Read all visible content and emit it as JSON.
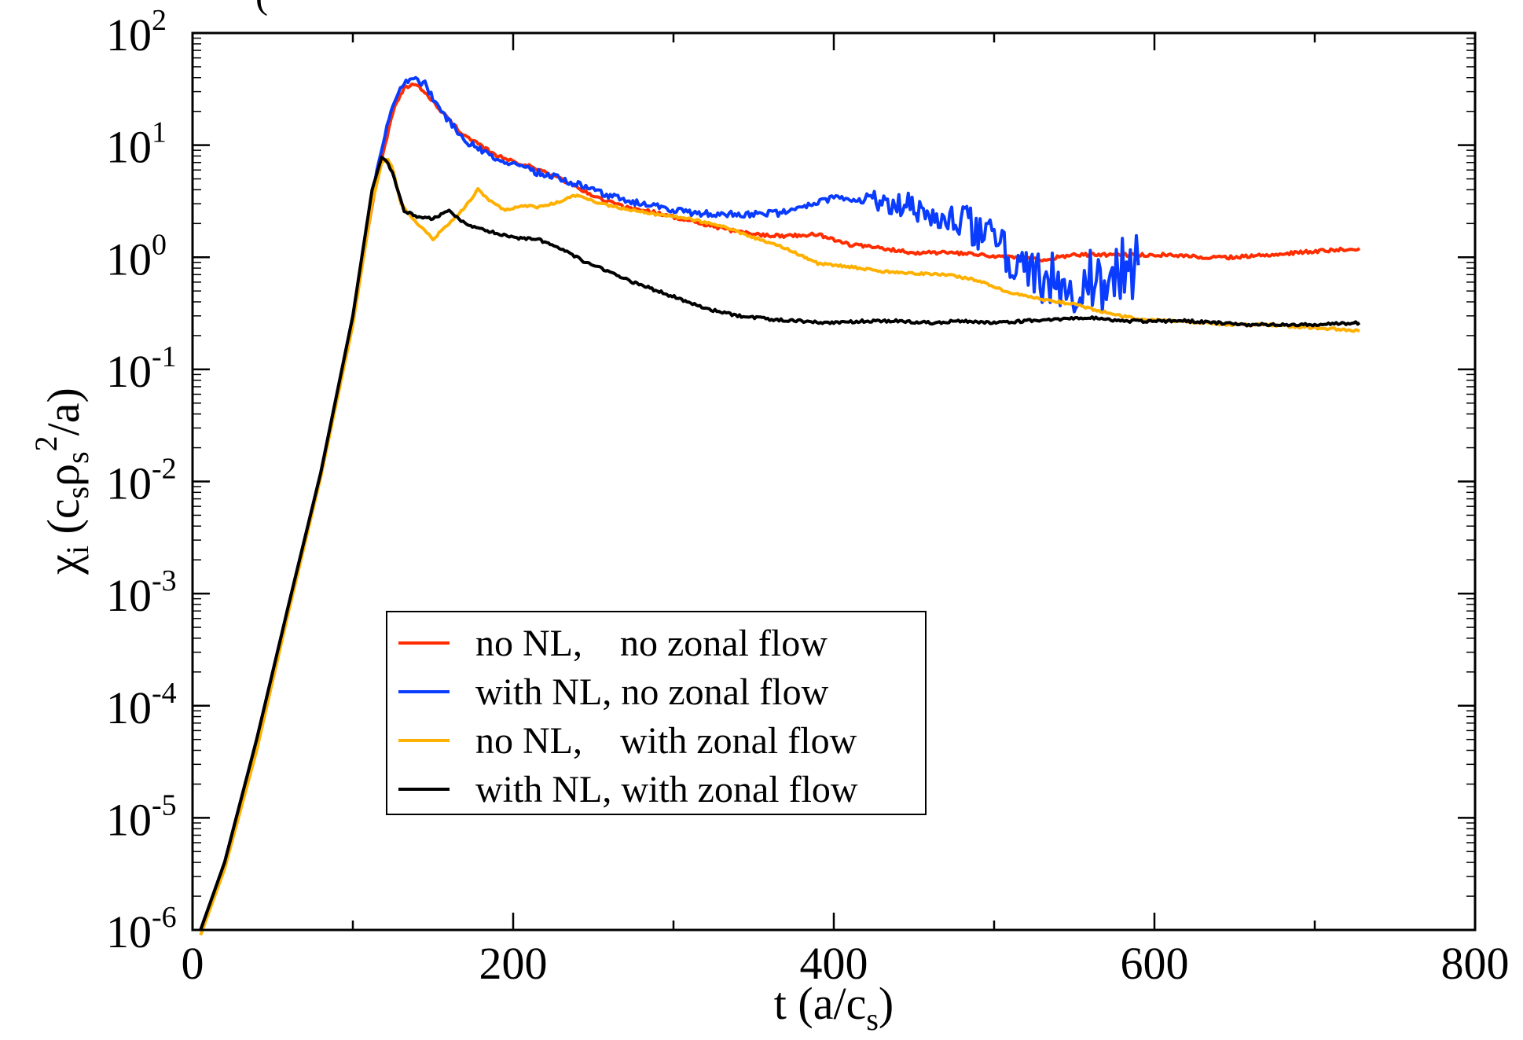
{
  "chart_data": {
    "type": "line",
    "title": "(",
    "xlabel": "t (a/c_s)",
    "xlabel_main": "t (a/c",
    "xlabel_sub": "s",
    "xlabel_tail": ")",
    "ylabel": "χ_i (c_s ρ_s^2/a)",
    "ylabel_parts": {
      "chi": "χ",
      "i": "i",
      "open": " (c",
      "s1": "s",
      "rho": "ρ",
      "s2": "s",
      "sup": "2",
      "tail": "/a)"
    },
    "xlim": [
      0,
      800
    ],
    "ylim": [
      1e-06,
      100
    ],
    "yscale": "log",
    "x_ticks": [
      0,
      200,
      400,
      600,
      800
    ],
    "x_tick_labels": [
      "0",
      "200",
      "400",
      "600",
      "800"
    ],
    "y_ticks": [
      -6,
      -5,
      -4,
      -3,
      -2,
      -1,
      0,
      1,
      2
    ],
    "y_tick_base": "10",
    "y_tick_exponents": [
      "-6",
      "-5",
      "-4",
      "-3",
      "-2",
      "-1",
      "0",
      "1",
      "2"
    ],
    "legend_position": "lower-center",
    "series": [
      {
        "name": "no NL,    no zonal flow",
        "color": "#ff2d00",
        "noise": 0.015,
        "x": [
          5,
          20,
          40,
          60,
          80,
          100,
          115,
          125,
          132,
          138,
          145,
          155,
          170,
          190,
          210,
          230,
          250,
          270,
          290,
          310,
          330,
          350,
          370,
          390,
          410,
          430,
          450,
          470,
          490,
          510,
          530,
          550,
          570,
          590,
          610,
          630,
          650,
          670,
          690,
          710,
          728
        ],
        "y": [
          1e-06,
          4e-06,
          5e-05,
          0.0008,
          0.012,
          0.3,
          5,
          20,
          32,
          35,
          30,
          20,
          12,
          8,
          6.5,
          5,
          3.5,
          2.8,
          2.5,
          2.1,
          1.8,
          1.6,
          1.55,
          1.6,
          1.3,
          1.2,
          1.1,
          1.1,
          1.05,
          1.0,
          0.95,
          1.05,
          1.05,
          1.05,
          1.05,
          1.0,
          1.0,
          1.05,
          1.1,
          1.15,
          1.2
        ]
      },
      {
        "name": "with NL, no zonal flow",
        "color": "#0a3cff",
        "noise": 0.03,
        "x": [
          5,
          20,
          40,
          60,
          80,
          100,
          115,
          125,
          132,
          138,
          145,
          155,
          170,
          190,
          210,
          230,
          250,
          270,
          290,
          310,
          330,
          350,
          370,
          390,
          400,
          410,
          430,
          450,
          470,
          490,
          500,
          510,
          520,
          530,
          540,
          550,
          560,
          570,
          580,
          590
        ],
        "y": [
          1e-06,
          4e-06,
          5e-05,
          0.0008,
          0.012,
          0.3,
          6,
          24,
          36,
          40,
          35,
          20,
          11,
          7.5,
          6,
          5,
          4,
          3.2,
          2.8,
          2.5,
          2.4,
          2.4,
          2.5,
          3.0,
          3.5,
          3.3,
          3.2,
          2.8,
          2.3,
          1.8,
          1.4,
          1.0,
          0.8,
          0.65,
          0.6,
          0.55,
          0.6,
          0.62,
          0.75,
          0.85
        ]
      },
      {
        "name": "no NL,    with zonal flow",
        "color": "#ffb000",
        "noise": 0.01,
        "x": [
          5,
          20,
          40,
          60,
          80,
          100,
          112,
          118,
          122,
          125,
          130,
          140,
          150,
          160,
          170,
          178,
          185,
          195,
          205,
          215,
          225,
          240,
          255,
          270,
          290,
          310,
          330,
          350,
          370,
          390,
          410,
          430,
          450,
          470,
          490,
          510,
          530,
          550,
          570,
          590,
          610,
          630,
          650,
          670,
          690,
          710,
          728
        ],
        "y": [
          9e-07,
          3.5e-06,
          4e-05,
          0.0007,
          0.011,
          0.25,
          3,
          7,
          7.5,
          6,
          3,
          2.0,
          1.45,
          2.0,
          2.8,
          4.0,
          3.2,
          2.6,
          2.9,
          2.8,
          3.0,
          3.6,
          3.0,
          2.7,
          2.4,
          2.2,
          1.9,
          1.5,
          1.2,
          0.88,
          0.82,
          0.75,
          0.72,
          0.7,
          0.62,
          0.48,
          0.42,
          0.38,
          0.32,
          0.28,
          0.27,
          0.26,
          0.25,
          0.25,
          0.24,
          0.23,
          0.22
        ]
      },
      {
        "name": "with NL, with zonal flow",
        "color": "#000000",
        "noise": 0.012,
        "x": [
          5,
          20,
          40,
          60,
          80,
          100,
          112,
          118,
          122,
          126,
          132,
          140,
          150,
          160,
          170,
          185,
          200,
          215,
          230,
          245,
          260,
          275,
          290,
          305,
          320,
          340,
          360,
          380,
          400,
          420,
          440,
          460,
          480,
          500,
          520,
          540,
          560,
          580,
          600,
          620,
          640,
          660,
          680,
          700,
          728
        ],
        "y": [
          1e-06,
          4e-06,
          5e-05,
          0.0008,
          0.012,
          0.3,
          4,
          7.8,
          7.0,
          5,
          2.6,
          2.3,
          2.2,
          2.6,
          2.0,
          1.7,
          1.5,
          1.45,
          1.2,
          0.9,
          0.75,
          0.6,
          0.5,
          0.42,
          0.35,
          0.3,
          0.28,
          0.27,
          0.26,
          0.27,
          0.27,
          0.26,
          0.27,
          0.26,
          0.27,
          0.28,
          0.29,
          0.27,
          0.27,
          0.27,
          0.26,
          0.25,
          0.25,
          0.25,
          0.26
        ]
      }
    ]
  }
}
